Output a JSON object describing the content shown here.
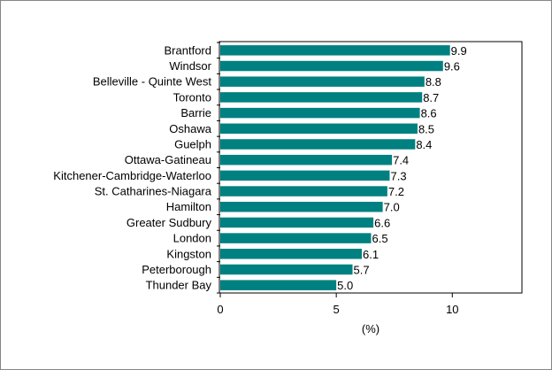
{
  "chart_data": {
    "type": "bar",
    "orientation": "horizontal",
    "categories": [
      "Brantford",
      "Windsor",
      "Belleville - Quinte West",
      "Toronto",
      "Barrie",
      "Oshawa",
      "Guelph",
      "Ottawa-Gatineau",
      "Kitchener-Cambridge-Waterloo",
      "St. Catharines-Niagara",
      "Hamilton",
      "Greater Sudbury",
      "London",
      "Kingston",
      "Peterborough",
      "Thunder Bay"
    ],
    "values": [
      9.9,
      9.6,
      8.8,
      8.7,
      8.6,
      8.5,
      8.4,
      7.4,
      7.3,
      7.2,
      7.0,
      6.6,
      6.5,
      6.1,
      5.7,
      5.0
    ],
    "value_labels": [
      "9.9",
      "9.6",
      "8.8",
      "8.7",
      "8.6",
      "8.5",
      "8.4",
      "7.4",
      "7.3",
      "7.2",
      "7.0",
      "6.6",
      "6.5",
      "6.1",
      "5.7",
      "5.0"
    ],
    "xlabel": "(%)",
    "xlim": [
      0,
      13
    ],
    "xticks": [
      0,
      5,
      10
    ],
    "xtick_labels": [
      "0",
      "5",
      "10"
    ],
    "grid": false,
    "bar_color": "#008080"
  }
}
